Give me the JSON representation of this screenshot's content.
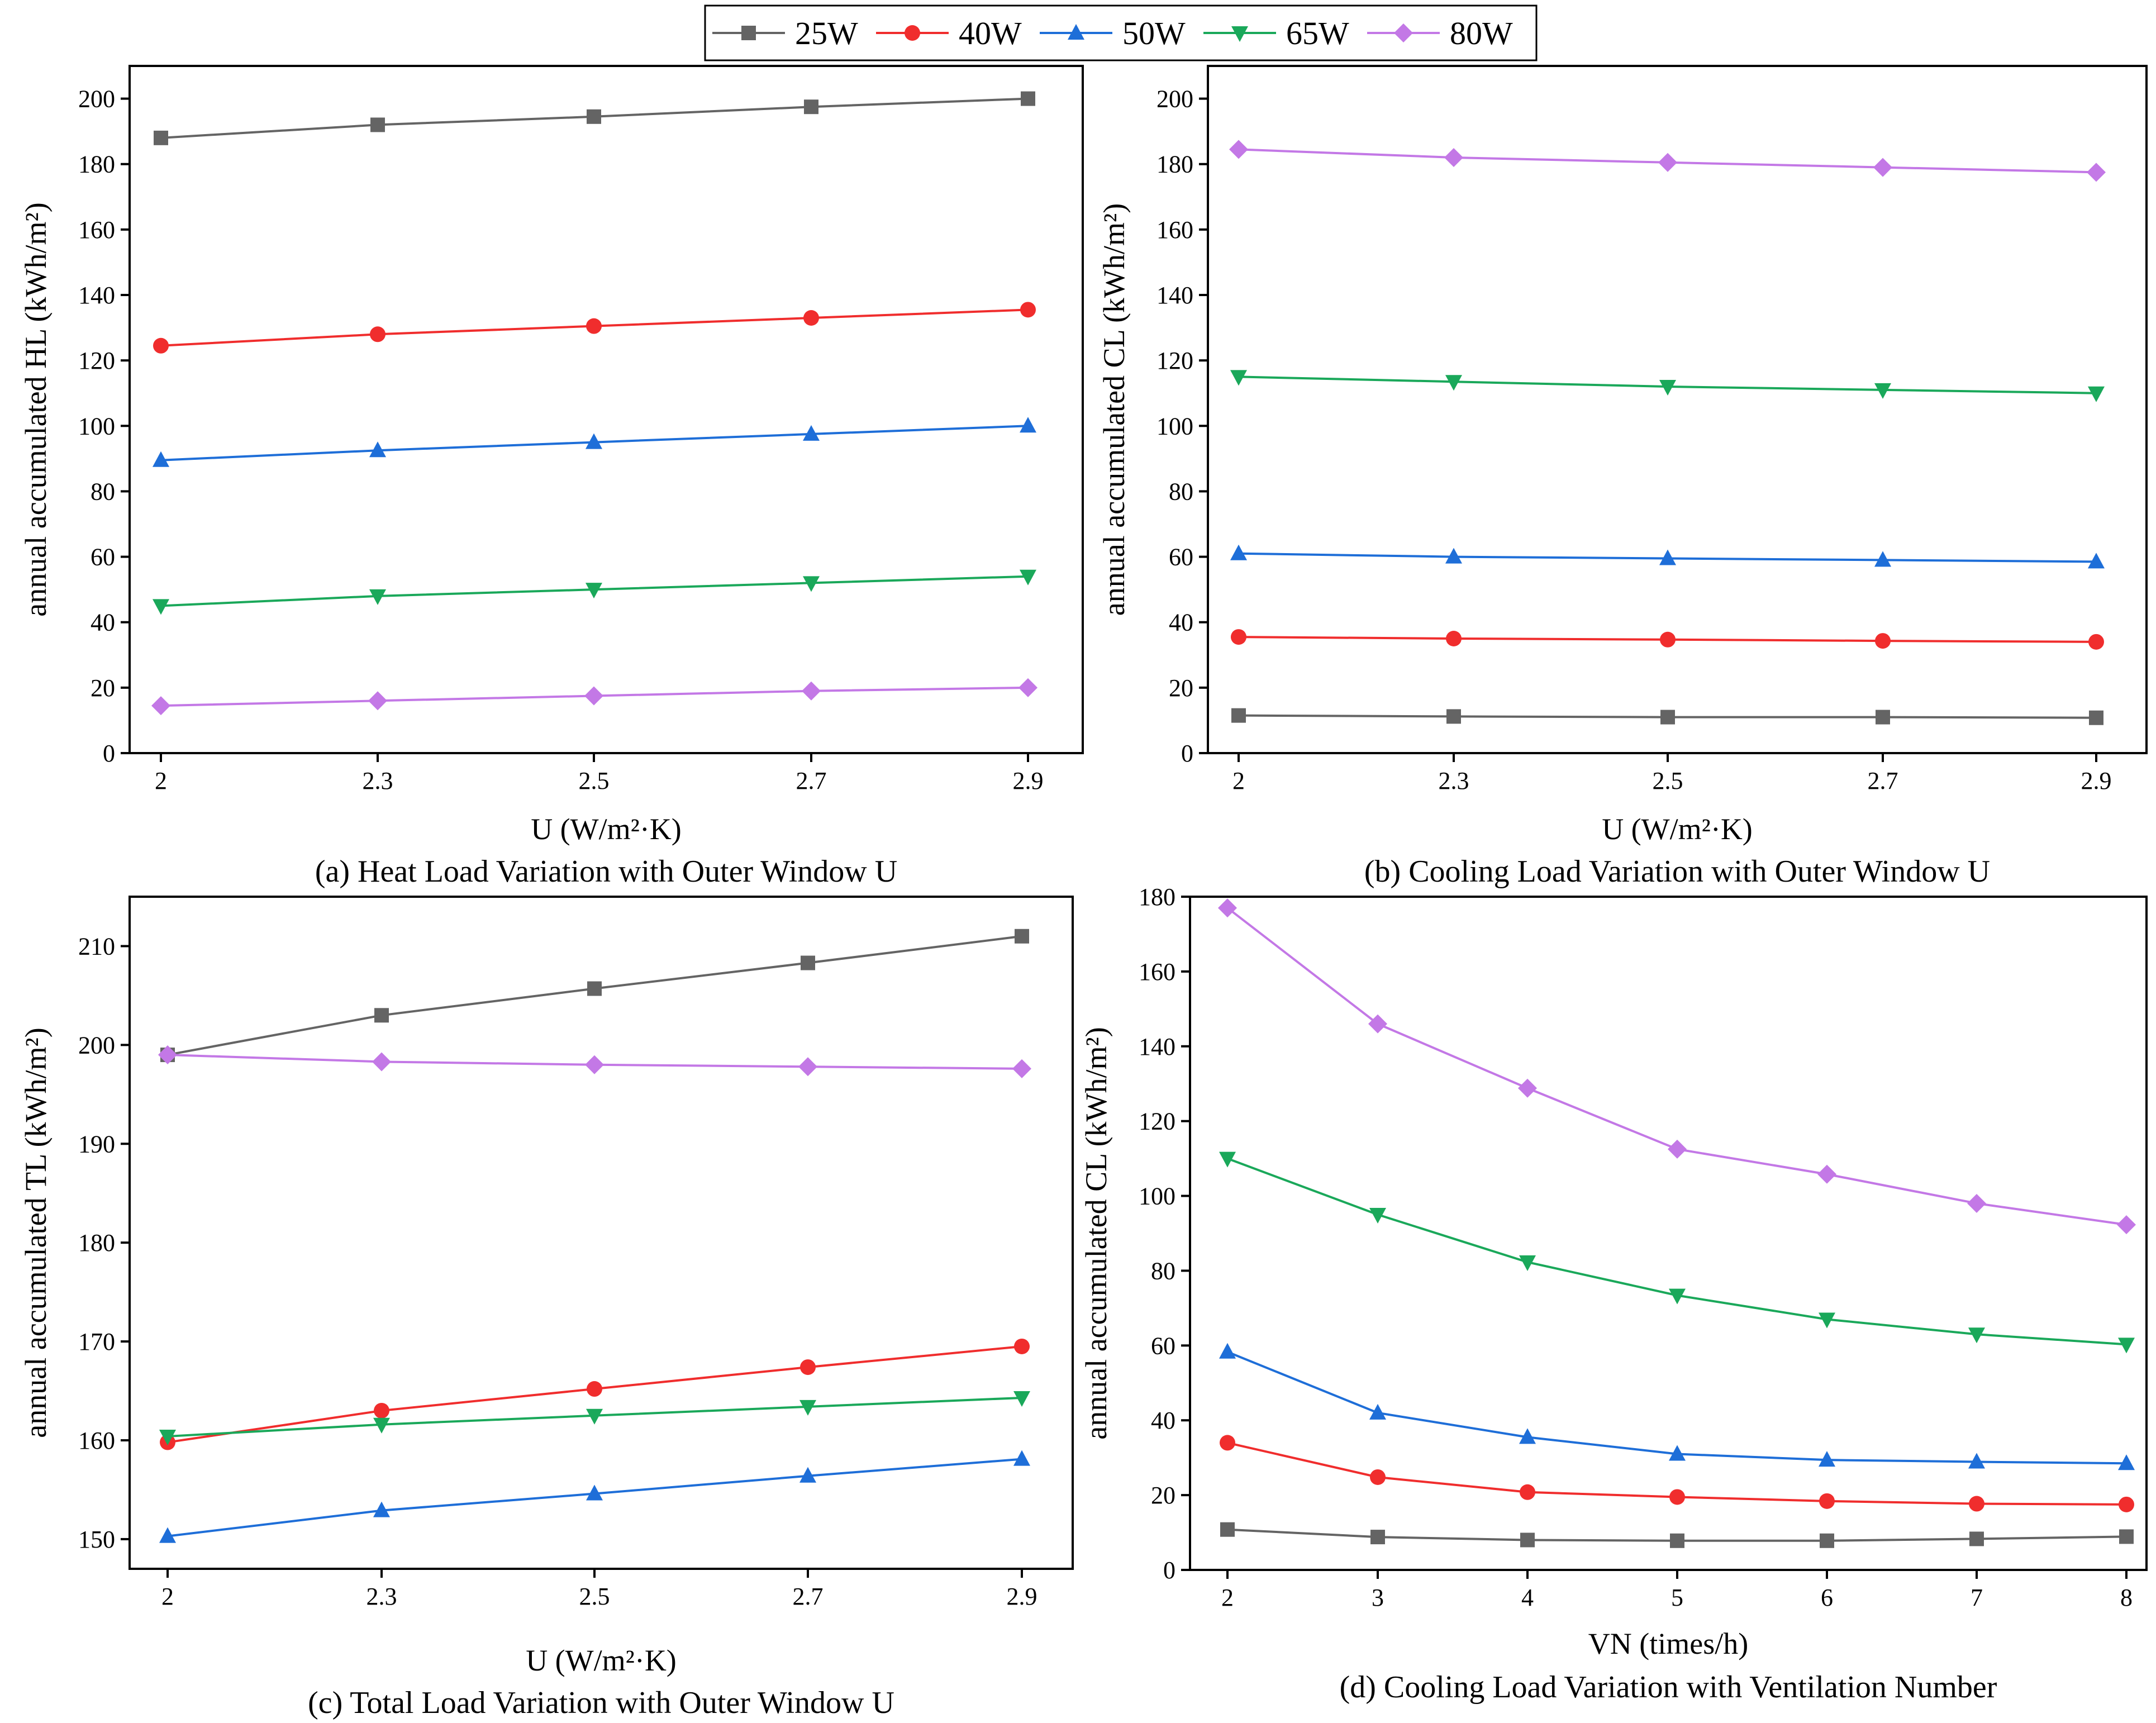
{
  "series_styles": [
    {
      "name": "25W",
      "color": "#646464",
      "marker": "square"
    },
    {
      "name": "40W",
      "color": "#f02d2d",
      "marker": "circle"
    },
    {
      "name": "50W",
      "color": "#1e6ed8",
      "marker": "triangle-up"
    },
    {
      "name": "65W",
      "color": "#1aa85a",
      "marker": "triangle-down"
    },
    {
      "name": "80W",
      "color": "#c378e6",
      "marker": "diamond"
    }
  ],
  "chart_data": [
    {
      "id": "a",
      "type": "line",
      "caption": "(a) Heat Load Variation with Outer Window U",
      "ylabel": "annual accumulated HL (kWh/m²)",
      "xlabel": "U (W/m²·K)",
      "categories": [
        "2",
        "2.3",
        "2.5",
        "2.7",
        "2.9"
      ],
      "ylim": [
        0,
        210
      ],
      "yticks": [
        0,
        20,
        40,
        60,
        80,
        100,
        120,
        140,
        160,
        180,
        200
      ],
      "series": [
        {
          "name": "25W",
          "values": [
            188,
            192,
            194.5,
            197.5,
            200
          ]
        },
        {
          "name": "40W",
          "values": [
            124.5,
            128,
            130.5,
            133,
            135.5
          ]
        },
        {
          "name": "50W",
          "values": [
            89.5,
            92.5,
            95,
            97.5,
            100
          ]
        },
        {
          "name": "65W",
          "values": [
            45,
            48,
            50,
            52,
            54
          ]
        },
        {
          "name": "80W",
          "values": [
            14.5,
            16,
            17.5,
            19,
            20
          ]
        }
      ]
    },
    {
      "id": "b",
      "type": "line",
      "caption": "(b) Cooling Load Variation with Outer Window U",
      "ylabel": "annual accumulated CL (kWh/m²)",
      "xlabel": "U (W/m²·K)",
      "categories": [
        "2",
        "2.3",
        "2.5",
        "2.7",
        "2.9"
      ],
      "ylim": [
        0,
        210
      ],
      "yticks": [
        0,
        20,
        40,
        60,
        80,
        100,
        120,
        140,
        160,
        180,
        200
      ],
      "series": [
        {
          "name": "25W",
          "values": [
            11.5,
            11.2,
            11,
            11,
            10.8
          ]
        },
        {
          "name": "40W",
          "values": [
            35.5,
            35,
            34.7,
            34.3,
            34
          ]
        },
        {
          "name": "50W",
          "values": [
            61,
            60,
            59.5,
            59,
            58.5
          ]
        },
        {
          "name": "65W",
          "values": [
            115,
            113.5,
            112,
            111,
            110
          ]
        },
        {
          "name": "80W",
          "values": [
            184.5,
            182,
            180.5,
            179,
            177.5
          ]
        }
      ]
    },
    {
      "id": "c",
      "type": "line",
      "caption": "(c) Total Load Variation with Outer Window U",
      "ylabel": "annual accumulated TL (kWh/m²)",
      "xlabel": "U (W/m²·K)",
      "categories": [
        "2",
        "2.3",
        "2.5",
        "2.7",
        "2.9"
      ],
      "ylim": [
        147,
        215
      ],
      "yticks": [
        150,
        160,
        170,
        180,
        190,
        200,
        210
      ],
      "series": [
        {
          "name": "25W",
          "values": [
            199,
            203,
            205.7,
            208.3,
            211
          ]
        },
        {
          "name": "40W",
          "values": [
            159.8,
            163,
            165.2,
            167.4,
            169.5
          ]
        },
        {
          "name": "50W",
          "values": [
            150.3,
            152.9,
            154.6,
            156.4,
            158.1
          ]
        },
        {
          "name": "65W",
          "values": [
            160.4,
            161.6,
            162.5,
            163.4,
            164.3
          ]
        },
        {
          "name": "80W",
          "values": [
            199,
            198.3,
            198,
            197.8,
            197.6
          ]
        }
      ]
    },
    {
      "id": "d",
      "type": "line",
      "caption": "(d) Cooling Load Variation with Ventilation Number",
      "ylabel": "annual accumulated CL (kWh/m²)",
      "xlabel": "VN (times/h)",
      "categories": [
        "2",
        "3",
        "4",
        "5",
        "6",
        "7",
        "8"
      ],
      "ylim": [
        0,
        180
      ],
      "yticks": [
        0,
        20,
        40,
        60,
        80,
        100,
        120,
        140,
        160,
        180
      ],
      "series": [
        {
          "name": "25W",
          "values": [
            10.8,
            8.8,
            8,
            7.8,
            7.8,
            8.3,
            8.9
          ]
        },
        {
          "name": "40W",
          "values": [
            34,
            24.8,
            20.8,
            19.5,
            18.4,
            17.7,
            17.5
          ]
        },
        {
          "name": "50W",
          "values": [
            58.3,
            42,
            35.5,
            31,
            29.4,
            28.9,
            28.5
          ]
        },
        {
          "name": "65W",
          "values": [
            110,
            95,
            82.3,
            73.4,
            67,
            63,
            60.3
          ]
        },
        {
          "name": "80W",
          "values": [
            177,
            146,
            128.8,
            112.5,
            105.8,
            98,
            92.3
          ]
        }
      ]
    }
  ]
}
